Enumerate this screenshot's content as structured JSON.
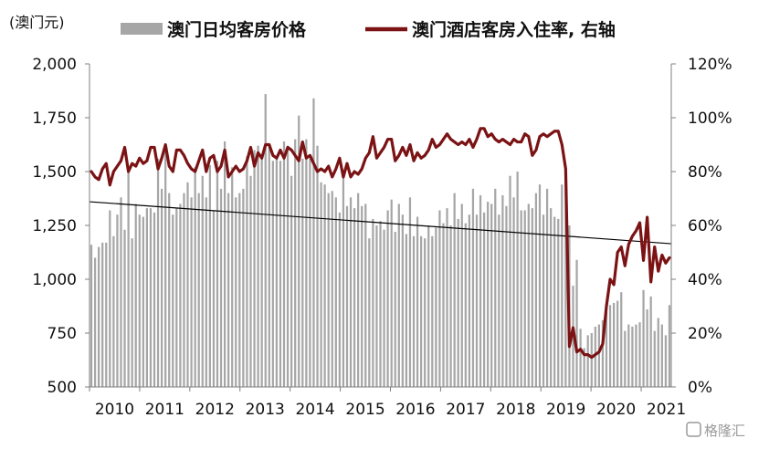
{
  "chart_data": {
    "type": "bar+line",
    "unit_left": "(澳门元)",
    "x_tick_labels": [
      "2010",
      "2011",
      "2012",
      "2013",
      "2014",
      "2015",
      "2016",
      "2017",
      "2018",
      "2019",
      "2020",
      "2021"
    ],
    "y_left": {
      "ylim": [
        500,
        2000
      ],
      "ticks": [
        "500",
        "750",
        "1,000",
        "1,250",
        "1,500",
        "1,750",
        "2,000"
      ],
      "tick_values": [
        500,
        750,
        1000,
        1250,
        1500,
        1750,
        2000
      ]
    },
    "y_right": {
      "ylim": [
        0,
        120
      ],
      "ticks": [
        "0%",
        "20%",
        "40%",
        "60%",
        "80%",
        "100%",
        "120%"
      ],
      "tick_values": [
        0,
        20,
        40,
        60,
        80,
        100,
        120
      ]
    },
    "legend": {
      "position": "top",
      "bar_label": "澳门日均客房价格",
      "line_label": "澳门酒店客房入住率, 右轴"
    },
    "colors": {
      "bars": "#a6a6a6",
      "line": "#7b1214",
      "trend": "#000000",
      "axis": "#7f7f7f"
    },
    "series": [
      {
        "name": "澳门日均客房价格",
        "type": "bar",
        "axis": "left",
        "values": [
          1160,
          1100,
          1150,
          1170,
          1170,
          1320,
          1200,
          1300,
          1380,
          1230,
          1500,
          1190,
          1350,
          1300,
          1290,
          1330,
          1330,
          1310,
          1560,
          1420,
          1600,
          1400,
          1300,
          1330,
          1350,
          1400,
          1450,
          1380,
          1520,
          1400,
          1480,
          1380,
          1530,
          1320,
          1550,
          1420,
          1640,
          1400,
          1520,
          1380,
          1400,
          1420,
          1570,
          1480,
          1600,
          1620,
          1580,
          1860,
          1620,
          1550,
          1560,
          1550,
          1640,
          1600,
          1480,
          1650,
          1760,
          1560,
          1650,
          1560,
          1840,
          1620,
          1450,
          1440,
          1400,
          1410,
          1380,
          1310,
          1500,
          1340,
          1380,
          1330,
          1400,
          1340,
          1350,
          1190,
          1280,
          1250,
          1270,
          1230,
          1320,
          1370,
          1220,
          1350,
          1300,
          1210,
          1380,
          1200,
          1290,
          1200,
          1190,
          1250,
          1200,
          1240,
          1320,
          1260,
          1330,
          1250,
          1400,
          1280,
          1350,
          1260,
          1300,
          1420,
          1300,
          1390,
          1310,
          1360,
          1350,
          1420,
          1300,
          1390,
          1340,
          1480,
          1380,
          1500,
          1320,
          1320,
          1350,
          1330,
          1400,
          1440,
          1300,
          1420,
          1330,
          1290,
          1280,
          1440,
          1480,
          1250,
          970,
          1090,
          770,
          680,
          740,
          750,
          780,
          790,
          810,
          850,
          880,
          890,
          900,
          940,
          760,
          790,
          780,
          790,
          800,
          950,
          860,
          920,
          760,
          820,
          790,
          740,
          880
        ]
      },
      {
        "name": "澳门酒店客房入住率, 右轴",
        "type": "line",
        "axis": "right",
        "values": [
          80,
          78,
          77,
          81,
          83,
          75,
          80,
          82,
          84,
          89,
          80,
          83,
          82,
          85,
          83,
          84,
          89,
          89,
          81,
          85,
          90,
          82,
          80,
          88,
          88,
          86,
          83,
          81,
          80,
          84,
          88,
          80,
          85,
          86,
          80,
          82,
          88,
          78,
          80,
          82,
          80,
          81,
          84,
          89,
          82,
          87,
          85,
          90,
          90,
          86,
          85,
          88,
          85,
          89,
          88,
          86,
          84,
          91,
          85,
          86,
          83,
          80,
          81,
          80,
          82,
          78,
          81,
          85,
          78,
          83,
          78,
          80,
          79,
          81,
          85,
          87,
          93,
          85,
          87,
          89,
          92,
          92,
          84,
          86,
          89,
          86,
          90,
          84,
          87,
          85,
          86,
          88,
          92,
          89,
          90,
          92,
          94,
          92,
          91,
          90,
          91,
          90,
          92,
          89,
          92,
          96,
          96,
          93,
          94,
          92,
          91,
          92,
          91,
          90,
          92,
          91,
          91,
          94,
          93,
          86,
          88,
          93,
          94,
          93,
          94,
          95,
          95,
          90,
          81,
          15,
          22,
          13,
          14,
          12,
          12,
          11,
          12,
          13,
          16,
          30,
          40,
          38,
          50,
          52,
          45,
          53,
          56,
          58,
          61,
          47,
          63,
          39,
          52,
          43,
          49,
          46,
          48
        ]
      },
      {
        "name": "",
        "type": "trendline",
        "axis": "left",
        "start": 1360,
        "end": 1165
      }
    ]
  },
  "watermark": "格隆汇"
}
